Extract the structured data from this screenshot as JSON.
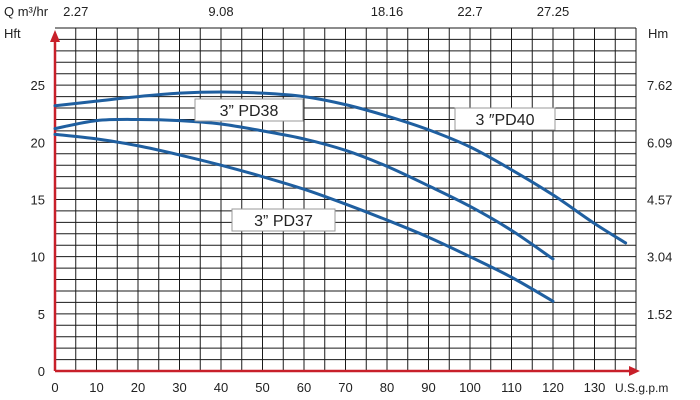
{
  "chart_data": {
    "type": "line",
    "top_axis_label": "Q m³/hr",
    "top_ticks": [
      {
        "x": 5,
        "label": "2.27"
      },
      {
        "x": 40,
        "label": "9.08"
      },
      {
        "x": 80,
        "label": "18.16"
      },
      {
        "x": 100,
        "label": "22.7"
      },
      {
        "x": 120,
        "label": "27.25"
      }
    ],
    "left_axis_label": "Hft",
    "right_axis_label": "Hm",
    "bottom_axis_label": "U.S.g.p.m",
    "xlim": [
      0,
      140
    ],
    "ylim": [
      0,
      30
    ],
    "x_ticks": [
      0,
      10,
      20,
      30,
      40,
      50,
      60,
      70,
      80,
      90,
      100,
      110,
      120,
      130
    ],
    "y_ticks": [
      0,
      5,
      10,
      15,
      20,
      25
    ],
    "right_ticks": [
      {
        "y": 5,
        "label": "1.52"
      },
      {
        "y": 10,
        "label": "3.04"
      },
      {
        "y": 15,
        "label": "4.57"
      },
      {
        "y": 20,
        "label": "6.09"
      },
      {
        "y": 25,
        "label": "7.62"
      }
    ],
    "grid": true,
    "series": [
      {
        "name": "3” PD40",
        "color": "#1f5fa0",
        "x": [
          0,
          10,
          20,
          30,
          40,
          50,
          60,
          70,
          80,
          90,
          100,
          110,
          120,
          130,
          137.5
        ],
        "y": [
          23.2,
          23.6,
          24.0,
          24.3,
          24.4,
          24.3,
          24.0,
          23.3,
          22.3,
          21.1,
          19.6,
          17.6,
          15.4,
          12.9,
          11.2
        ]
      },
      {
        "name": "3” PD38",
        "color": "#1f5fa0",
        "x": [
          0,
          10,
          20,
          30,
          40,
          50,
          60,
          70,
          80,
          90,
          100,
          110,
          120
        ],
        "y": [
          21.2,
          21.9,
          22.0,
          21.9,
          21.6,
          21.0,
          20.3,
          19.3,
          17.9,
          16.2,
          14.4,
          12.3,
          9.8
        ]
      },
      {
        "name": "3” PD37",
        "color": "#1f5fa0",
        "x": [
          0,
          10,
          20,
          30,
          40,
          50,
          60,
          70,
          80,
          90,
          100,
          110,
          120
        ],
        "y": [
          20.7,
          20.3,
          19.7,
          18.9,
          18.0,
          17.0,
          15.9,
          14.6,
          13.2,
          11.7,
          10.0,
          8.2,
          6.1
        ]
      }
    ],
    "annotations": [
      {
        "text": "3” PD38",
        "series": 1
      },
      {
        "text": "3 ″PD40",
        "series": 0
      },
      {
        "text": "3” PD37",
        "series": 2
      }
    ]
  }
}
